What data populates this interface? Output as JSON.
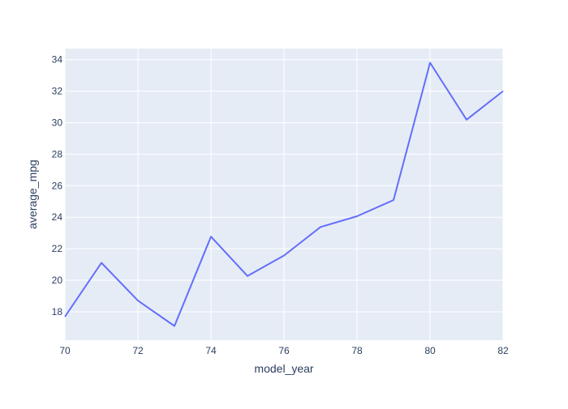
{
  "chart_data": {
    "type": "line",
    "title": "",
    "xlabel": "model_year",
    "ylabel": "average_mpg",
    "xlim": [
      70,
      82
    ],
    "ylim": [
      16.2,
      34.7
    ],
    "x_ticks": [
      70,
      72,
      74,
      76,
      78,
      80,
      82
    ],
    "y_ticks": [
      18,
      20,
      22,
      24,
      26,
      28,
      30,
      32,
      34
    ],
    "grid": true,
    "legend": "none",
    "series": [
      {
        "x": [
          70,
          71,
          72,
          73,
          74,
          75,
          76,
          77,
          78,
          79,
          80,
          81,
          82
        ],
        "y": [
          17.69,
          21.11,
          18.71,
          17.1,
          22.77,
          20.27,
          21.57,
          23.38,
          24.06,
          25.09,
          33.8,
          30.19,
          32.0
        ]
      }
    ],
    "colors": {
      "plot_bg": "#e5ecf6",
      "grid": "#ffffff",
      "line": "#636efa",
      "text": "#2a3f5f"
    }
  }
}
